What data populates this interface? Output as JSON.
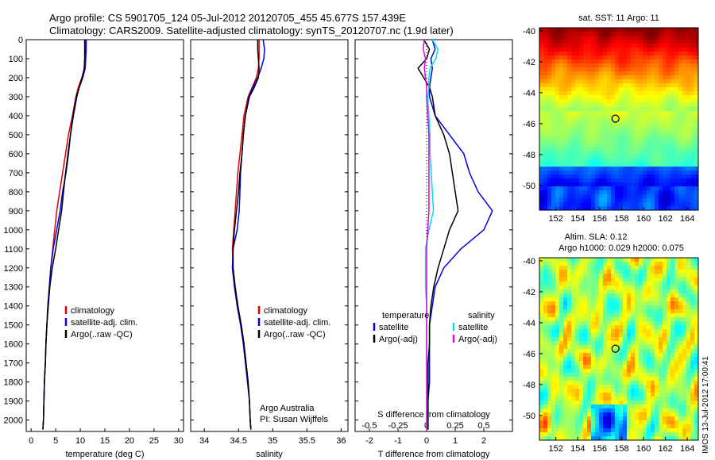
{
  "header": {
    "line1": "Argo profile: CS 5901705_124 05-Jul-2012 20120705_455 45.677S 157.439E",
    "line2": "Climatology: CARS2009. Satellite-adjusted climatology: synTS_20120707.nc (1.9d later)"
  },
  "footer_text": {
    "sst_title": "sat. SST: 11 Argo: 11",
    "sla_title1": "Altim. SLA: 0.12",
    "sla_title2": "Argo h1000: 0.029 h2000: 0.075",
    "stamp": "IMOS 13-Jul-2012 17:00:41",
    "credit1": "Argo Australia",
    "credit2": "PI: Susan Wijffels"
  },
  "colors": {
    "climatology": "#e00000",
    "satellite": "#0000e0",
    "argo": "#000000",
    "sal_satellite": "#00e0e0",
    "sal_argo": "#e000e0"
  },
  "chart_data": [
    {
      "type": "line",
      "xlabel": "temperature (deg C)",
      "ylabel": "",
      "xlim": [
        -1,
        31
      ],
      "ylim": [
        2060,
        0
      ],
      "xticks": [
        0,
        5,
        10,
        15,
        20,
        25,
        30
      ],
      "yticks": [
        0,
        100,
        200,
        300,
        400,
        500,
        600,
        700,
        800,
        900,
        1000,
        1100,
        1200,
        1300,
        1400,
        1500,
        1600,
        1700,
        1800,
        1900,
        2000
      ],
      "depth": [
        0,
        50,
        100,
        150,
        200,
        250,
        300,
        400,
        500,
        600,
        700,
        800,
        900,
        1000,
        1100,
        1200,
        1300,
        1400,
        1500,
        1600,
        1700,
        1800,
        1900,
        2000,
        2050
      ],
      "legend": {
        "entries": [
          "climatology",
          "satellite-adj. clim.",
          "Argo(..raw -QC)"
        ]
      },
      "series": [
        {
          "name": "climatology",
          "x": [
            11.0,
            11.0,
            11.0,
            10.9,
            10.3,
            9.6,
            9.1,
            8.4,
            7.6,
            7.0,
            6.4,
            5.8,
            5.2,
            4.8,
            4.4,
            4.0,
            3.7,
            3.4,
            3.2,
            3.0,
            2.9,
            2.7,
            2.6,
            2.5,
            2.4
          ]
        },
        {
          "name": "satellite-adj. clim.",
          "x": [
            11.2,
            11.2,
            11.1,
            11.0,
            10.5,
            9.8,
            9.2,
            8.5,
            8.0,
            7.6,
            7.1,
            6.4,
            5.9,
            5.2,
            4.5,
            4.0,
            3.7,
            3.4,
            3.2,
            3.0,
            2.9,
            2.7,
            2.6,
            2.5,
            2.4
          ]
        },
        {
          "name": "Argo(..raw -QC)",
          "x": [
            10.9,
            10.9,
            10.9,
            10.8,
            10.4,
            9.8,
            9.3,
            8.6,
            8.0,
            7.5,
            7.0,
            6.6,
            6.2,
            5.6,
            5.0,
            4.3,
            3.8,
            3.5,
            3.2,
            3.0,
            2.9,
            2.7,
            2.6,
            2.5,
            2.4
          ]
        }
      ]
    },
    {
      "type": "line",
      "xlabel": "salinity",
      "ylabel": "",
      "xlim": [
        33.8,
        36.1
      ],
      "ylim": [
        2060,
        0
      ],
      "xticks": [
        34,
        34.5,
        35,
        35.5,
        36
      ],
      "depth": [
        0,
        50,
        100,
        150,
        200,
        250,
        300,
        400,
        500,
        600,
        700,
        800,
        900,
        1000,
        1100,
        1200,
        1300,
        1400,
        1500,
        1600,
        1700,
        1800,
        1900,
        2000,
        2050
      ],
      "legend": {
        "entries": [
          "climatology",
          "satellite-adj. clim.",
          "Argo(..raw -QC)"
        ]
      },
      "series": [
        {
          "name": "climatology",
          "x": [
            34.8,
            34.8,
            34.8,
            34.79,
            34.76,
            34.7,
            34.64,
            34.58,
            34.55,
            34.52,
            34.49,
            34.47,
            34.45,
            34.43,
            34.41,
            34.42,
            34.45,
            34.49,
            34.54,
            34.58,
            34.61,
            34.64,
            34.66,
            34.67,
            34.68
          ]
        },
        {
          "name": "satellite-adj. clim.",
          "x": [
            34.86,
            34.88,
            34.87,
            34.83,
            34.78,
            34.71,
            34.65,
            34.6,
            34.57,
            34.55,
            34.53,
            34.52,
            34.51,
            34.48,
            34.42,
            34.41,
            34.44,
            34.48,
            34.53,
            34.57,
            34.6,
            34.63,
            34.66,
            34.67,
            34.68
          ]
        },
        {
          "name": "Argo(..raw -QC)",
          "x": [
            34.78,
            34.78,
            34.79,
            34.8,
            34.79,
            34.73,
            34.66,
            34.6,
            34.57,
            34.55,
            34.52,
            34.5,
            34.47,
            34.44,
            34.42,
            34.42,
            34.45,
            34.49,
            34.54,
            34.58,
            34.61,
            34.64,
            34.66,
            34.67,
            34.68
          ]
        }
      ]
    },
    {
      "type": "line",
      "xlabel": "T difference from climatology",
      "ylabel": "",
      "xlim": [
        -2.5,
        3.0
      ],
      "ylim": [
        2060,
        0
      ],
      "xticks": [
        -2,
        -1,
        0,
        1,
        2
      ],
      "top_axis_label": "S difference from climatology",
      "top_ticks": [
        "-0.5",
        "-0.25",
        "0",
        "0.25",
        "0.5"
      ],
      "depth": [
        0,
        50,
        100,
        150,
        200,
        250,
        300,
        400,
        500,
        600,
        700,
        800,
        900,
        1000,
        1100,
        1200,
        1300,
        1400,
        1500,
        1600,
        1700,
        1800,
        1900,
        2000,
        2050
      ],
      "legend": {
        "left_title": "temperature",
        "right_title": "salinity",
        "entries": [
          "satellite",
          "Argo(-adj)",
          "satellite",
          "Argo(-adj)"
        ]
      },
      "series": [
        {
          "name": "satellite",
          "quantity": "temperature",
          "x": [
            0.2,
            0.3,
            0.15,
            0.2,
            0.15,
            0.1,
            0.1,
            0.3,
            0.8,
            1.3,
            1.5,
            1.8,
            2.3,
            2.0,
            1.2,
            0.6,
            0.3,
            0.2,
            0.1,
            0.1,
            0.1,
            0.1,
            0.05,
            0.05,
            0.05
          ]
        },
        {
          "name": "Argo(-adj)",
          "quantity": "temperature",
          "x": [
            -0.1,
            0.1,
            0.0,
            -0.3,
            -0.1,
            0.1,
            0.2,
            0.3,
            0.6,
            0.8,
            0.9,
            1.0,
            1.1,
            0.8,
            0.6,
            0.4,
            0.25,
            0.15,
            0.1,
            0.1,
            0.05,
            0.05,
            0.05,
            0.05,
            0.05
          ]
        },
        {
          "name": "satellite",
          "quantity": "salinity",
          "x": [
            0.05,
            0.1,
            0.08,
            0.03,
            0.02,
            0.02,
            0.01,
            0.02,
            0.03,
            0.03,
            0.04,
            0.05,
            0.06,
            0.02,
            -0.01,
            -0.01,
            -0.01,
            0.0,
            0.0,
            0.0,
            0.0,
            0.0,
            0.0,
            0.0,
            0.0
          ]
        },
        {
          "name": "Argo(-adj)",
          "quantity": "salinity",
          "x": [
            -0.02,
            -0.03,
            -0.01,
            -0.02,
            -0.01,
            0.0,
            0.0,
            0.01,
            0.02,
            0.02,
            0.02,
            0.02,
            0.02,
            0.01,
            0.0,
            0.0,
            0.0,
            0.0,
            0.0,
            0.0,
            0.0,
            0.0,
            0.0,
            0.0,
            0.0
          ]
        }
      ]
    },
    {
      "type": "heatmap",
      "title": "sat. SST: 11 Argo: 11",
      "xlim": [
        150.5,
        165
      ],
      "ylim": [
        -51.6,
        -39.8
      ],
      "xticks": [
        152,
        154,
        156,
        158,
        160,
        162,
        164
      ],
      "yticks": [
        -40,
        -42,
        -44,
        -46,
        -48,
        -50
      ],
      "marker": {
        "lon": 157.44,
        "lat": -45.68
      }
    },
    {
      "type": "heatmap",
      "title": "Altim. SLA: 0.12",
      "xlim": [
        150.5,
        165
      ],
      "ylim": [
        -51.6,
        -39.8
      ],
      "xticks": [
        152,
        154,
        156,
        158,
        160,
        162,
        164
      ],
      "yticks": [
        -40,
        -42,
        -44,
        -46,
        -48,
        -50
      ],
      "marker": {
        "lon": 157.44,
        "lat": -45.68
      }
    }
  ]
}
